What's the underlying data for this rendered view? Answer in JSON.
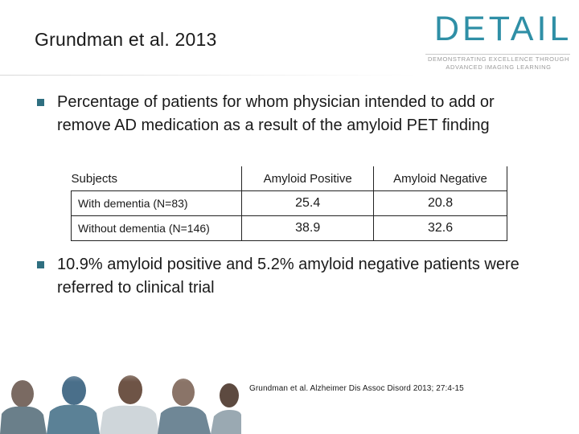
{
  "slide": {
    "title": "Grundman et al. 2013",
    "logo": {
      "word": "DETAIL",
      "tagline_line1": "DEMONSTRATING EXCELLENCE THROUGH",
      "tagline_line2": "ADVANCED IMAGING LEARNING"
    },
    "bullets": [
      "Percentage of patients for whom physician intended to add or remove AD medication as a result of the amyloid PET finding",
      "10.9% amyloid positive and 5.2% amyloid negative patients were referred to clinical trial"
    ],
    "table": {
      "headers": [
        "Subjects",
        "Amyloid Positive",
        "Amyloid Negative"
      ],
      "rows": [
        {
          "label": "With dementia (N=83)",
          "positive": "25.4",
          "negative": "20.8"
        },
        {
          "label": "Without dementia (N=146)",
          "positive": "38.9",
          "negative": "32.6"
        }
      ]
    },
    "citation": "Grundman et al. Alzheimer Dis Assoc Disord 2013; 27:4-15",
    "colors": {
      "logo_teal": "#2f8fa6",
      "bullet_mark": "#2f6f80"
    }
  }
}
